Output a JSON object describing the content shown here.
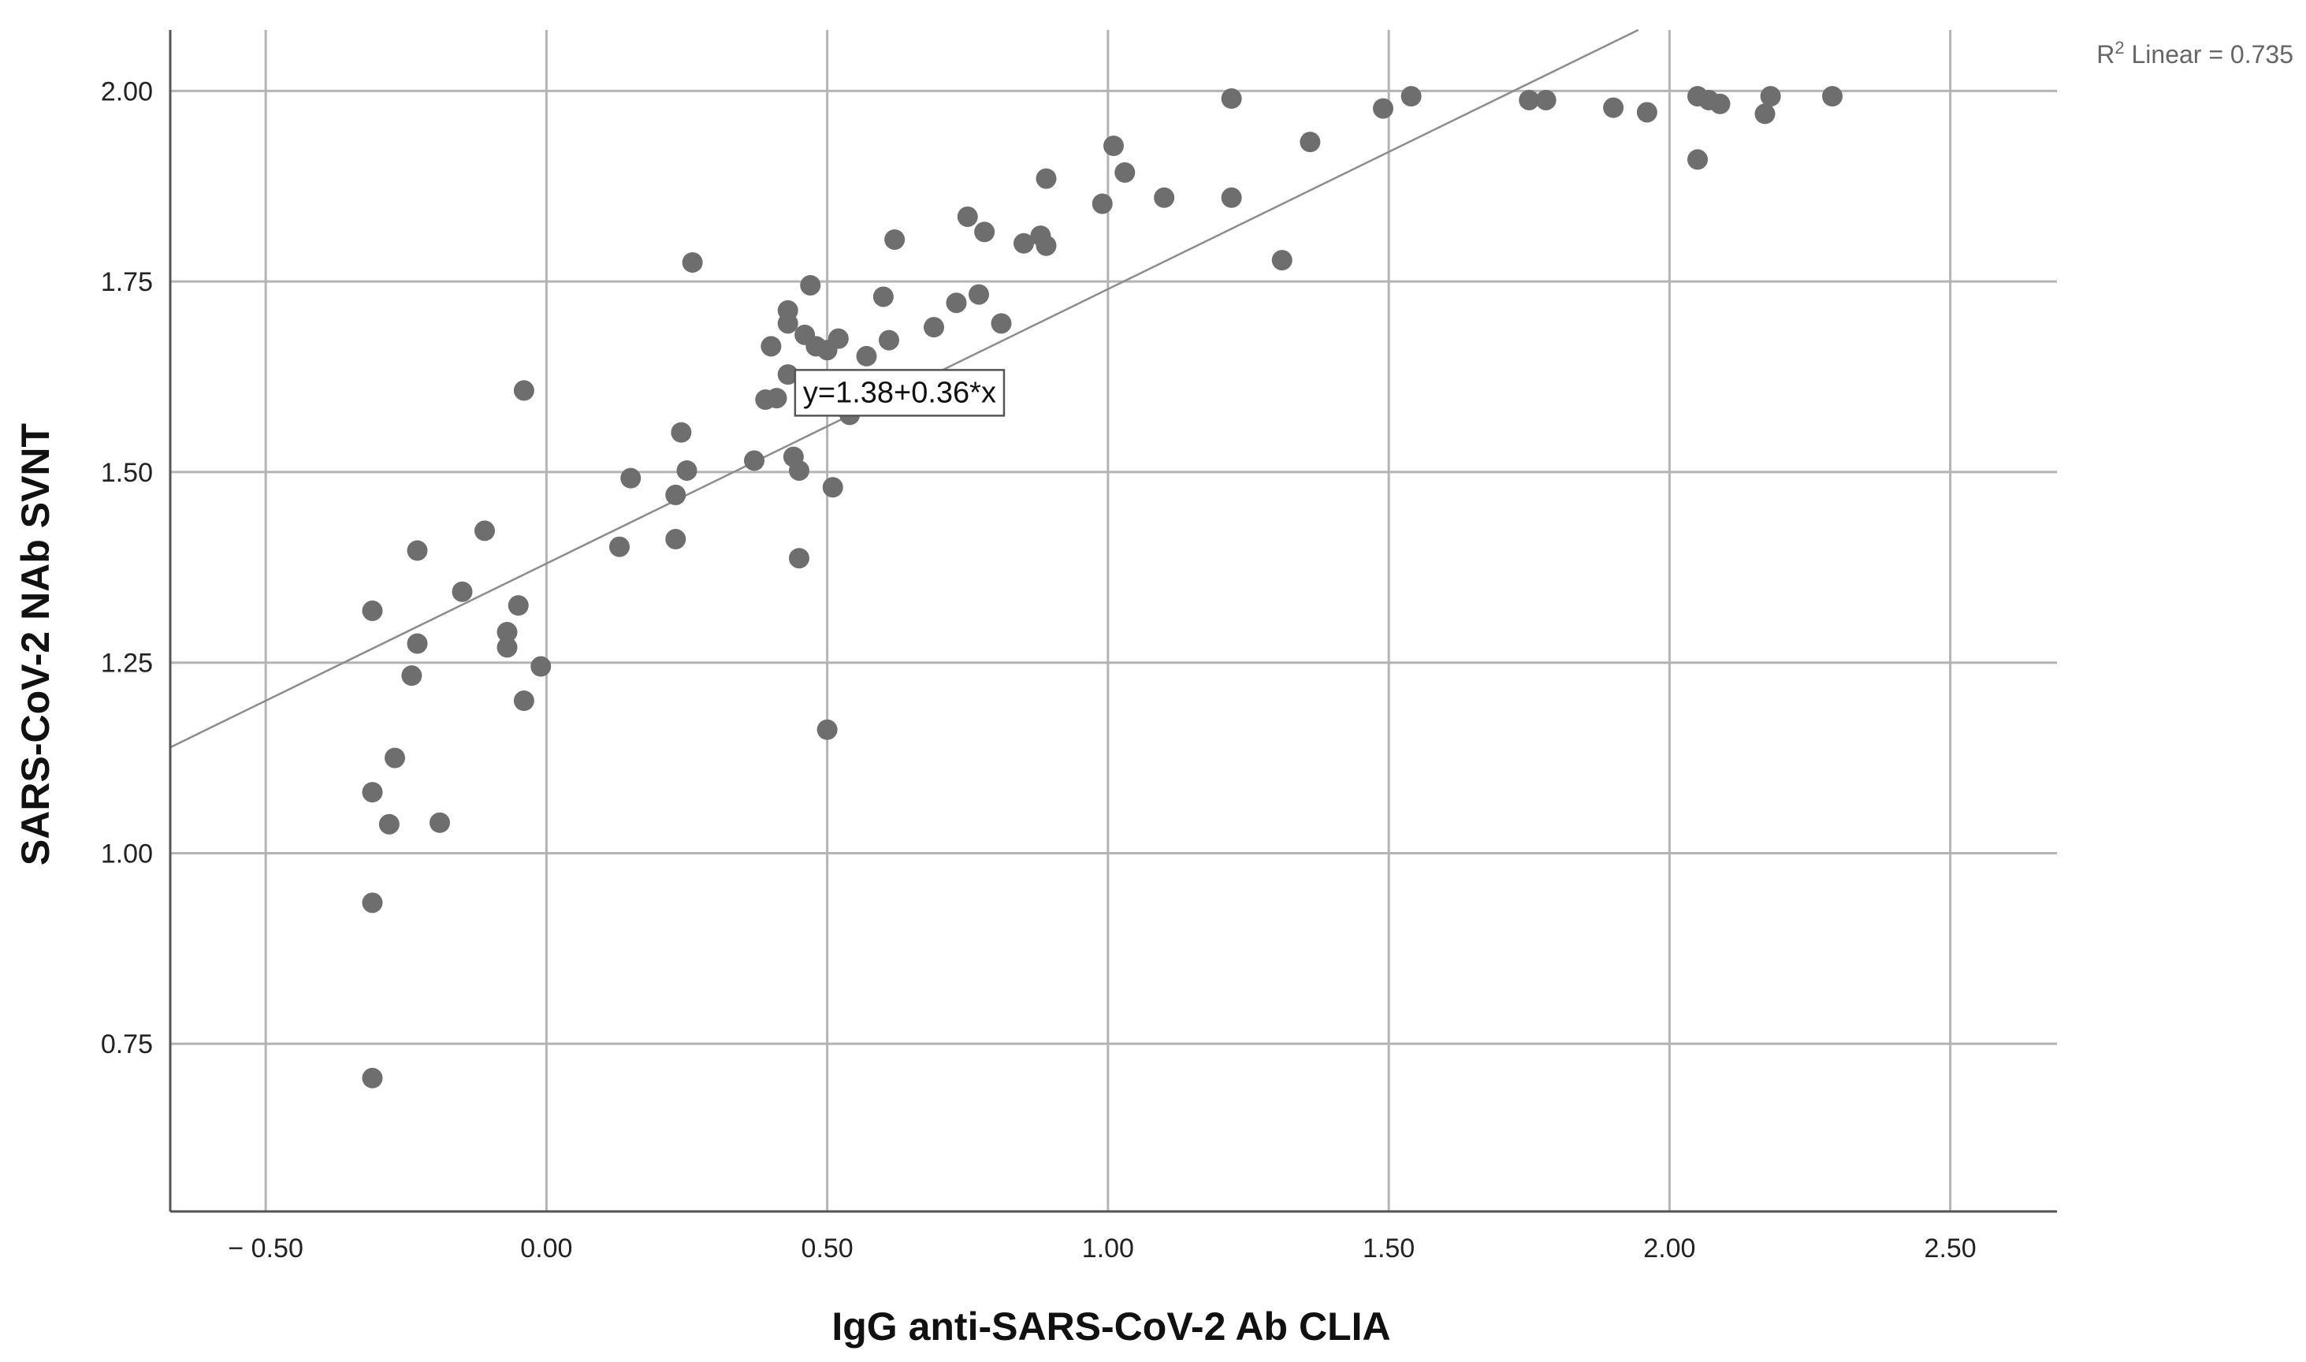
{
  "chart_data": {
    "type": "scatter",
    "xlabel": "IgG anti-SARS-CoV-2 Ab CLIA",
    "ylabel": "SARS-CoV-2 NAb SVNT",
    "xlim": [
      -0.67,
      2.69
    ],
    "ylim": [
      0.53,
      2.08
    ],
    "xticks": [
      -0.5,
      0.0,
      0.5,
      1.0,
      1.5,
      2.0,
      2.5
    ],
    "xtick_labels": [
      "− 0.50",
      "0.00",
      "0.50",
      "1.00",
      "1.50",
      "2.00",
      "2.50"
    ],
    "yticks": [
      0.75,
      1.0,
      1.25,
      1.5,
      1.75,
      2.0
    ],
    "ytick_labels": [
      "0.75",
      "1.00",
      "1.25",
      "1.50",
      "1.75",
      "2.00"
    ],
    "grid": true,
    "series": [
      {
        "points": [
          [
            -0.31,
            0.705
          ],
          [
            -0.31,
            0.935
          ],
          [
            -0.31,
            1.08
          ],
          [
            -0.28,
            1.038
          ],
          [
            -0.19,
            1.04
          ],
          [
            -0.27,
            1.125
          ],
          [
            -0.31,
            1.318
          ],
          [
            -0.24,
            1.233
          ],
          [
            -0.23,
            1.275
          ],
          [
            -0.23,
            1.397
          ],
          [
            -0.15,
            1.343
          ],
          [
            -0.11,
            1.423
          ],
          [
            -0.07,
            1.29
          ],
          [
            -0.07,
            1.27
          ],
          [
            -0.05,
            1.325
          ],
          [
            -0.04,
            1.2
          ],
          [
            -0.01,
            1.245
          ],
          [
            -0.04,
            1.607
          ],
          [
            0.13,
            1.402
          ],
          [
            0.15,
            1.492
          ],
          [
            0.23,
            1.412
          ],
          [
            0.23,
            1.47
          ],
          [
            0.24,
            1.552
          ],
          [
            0.25,
            1.502
          ],
          [
            0.26,
            1.775
          ],
          [
            0.37,
            1.515
          ],
          [
            0.39,
            1.595
          ],
          [
            0.4,
            1.665
          ],
          [
            0.41,
            1.597
          ],
          [
            0.43,
            1.712
          ],
          [
            0.43,
            1.695
          ],
          [
            0.43,
            1.628
          ],
          [
            0.44,
            1.52
          ],
          [
            0.45,
            1.502
          ],
          [
            0.45,
            1.387
          ],
          [
            0.46,
            1.68
          ],
          [
            0.47,
            1.745
          ],
          [
            0.48,
            1.665
          ],
          [
            0.5,
            1.162
          ],
          [
            0.5,
            1.66
          ],
          [
            0.51,
            1.48
          ],
          [
            0.52,
            1.675
          ],
          [
            0.54,
            1.575
          ],
          [
            0.57,
            1.652
          ],
          [
            0.6,
            1.73
          ],
          [
            0.61,
            1.673
          ],
          [
            0.62,
            1.805
          ],
          [
            0.69,
            1.69
          ],
          [
            0.73,
            1.722
          ],
          [
            0.75,
            1.835
          ],
          [
            0.77,
            1.733
          ],
          [
            0.78,
            1.815
          ],
          [
            0.81,
            1.695
          ],
          [
            0.85,
            1.8
          ],
          [
            0.88,
            1.81
          ],
          [
            0.89,
            1.797
          ],
          [
            0.89,
            1.885
          ],
          [
            0.99,
            1.852
          ],
          [
            1.01,
            1.928
          ],
          [
            1.03,
            1.893
          ],
          [
            1.1,
            1.86
          ],
          [
            1.22,
            1.86
          ],
          [
            1.22,
            1.99
          ],
          [
            1.31,
            1.778
          ],
          [
            1.36,
            1.933
          ],
          [
            1.49,
            1.977
          ],
          [
            1.54,
            1.993
          ],
          [
            1.75,
            1.988
          ],
          [
            1.78,
            1.988
          ],
          [
            1.9,
            1.978
          ],
          [
            1.96,
            1.972
          ],
          [
            2.05,
            1.993
          ],
          [
            2.05,
            1.91
          ],
          [
            2.07,
            1.988
          ],
          [
            2.09,
            1.983
          ],
          [
            2.17,
            1.97
          ],
          [
            2.18,
            1.993
          ],
          [
            2.29,
            1.993
          ]
        ]
      }
    ],
    "fit_line": {
      "intercept": 1.38,
      "slope": 0.36,
      "equation_label": "y=1.38+0.36*x",
      "equation_anchor": [
        0.44,
        1.605
      ],
      "r2_prefix": "R",
      "r2_superscript": "2",
      "r2_text": " Linear = 0.735"
    }
  }
}
